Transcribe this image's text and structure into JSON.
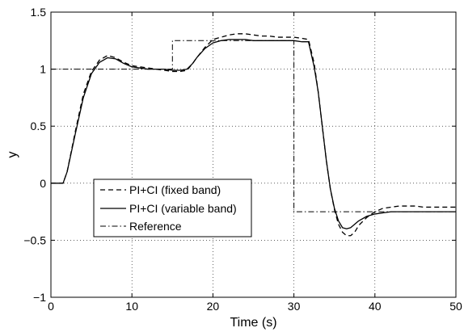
{
  "chart_data": {
    "type": "line",
    "title": "",
    "xlabel": "Time (s)",
    "ylabel": "y",
    "xlim": [
      0,
      50
    ],
    "ylim": [
      -1,
      1.5
    ],
    "xticks": [
      0,
      10,
      20,
      30,
      40,
      50
    ],
    "xtick_labels": [
      "0",
      "10",
      "20",
      "30",
      "40",
      "50"
    ],
    "yticks": [
      -1,
      -0.5,
      0,
      0.5,
      1,
      1.5
    ],
    "ytick_labels": [
      "−1",
      "−0.5",
      "0",
      "0.5",
      "1",
      "1.5"
    ],
    "grid": true,
    "legend_position": "lower-left",
    "series": [
      {
        "name": "PI+CI (fixed band)",
        "color": "#000000",
        "style": "dashed",
        "x": [
          0,
          1.5,
          2,
          3,
          4,
          5,
          6,
          7,
          8,
          9,
          10,
          11,
          12,
          13,
          14,
          15,
          16,
          16.8,
          17.5,
          18,
          19,
          20,
          21,
          22,
          23,
          24,
          25,
          26,
          27,
          28,
          29,
          30,
          31,
          31.8,
          32.5,
          33,
          33.5,
          34,
          34.5,
          35,
          35.5,
          36,
          36.5,
          37,
          37.5,
          38,
          39,
          40,
          41,
          42,
          43,
          44,
          45,
          46,
          47,
          48,
          49,
          50
        ],
        "y": [
          0,
          0,
          0.1,
          0.45,
          0.78,
          0.98,
          1.08,
          1.12,
          1.1,
          1.06,
          1.03,
          1.02,
          1.01,
          1.0,
          0.99,
          0.98,
          0.98,
          0.99,
          1.05,
          1.1,
          1.19,
          1.26,
          1.28,
          1.3,
          1.31,
          1.31,
          1.3,
          1.29,
          1.29,
          1.28,
          1.28,
          1.28,
          1.27,
          1.26,
          1.05,
          0.8,
          0.5,
          0.2,
          -0.05,
          -0.23,
          -0.36,
          -0.43,
          -0.46,
          -0.46,
          -0.43,
          -0.37,
          -0.3,
          -0.25,
          -0.22,
          -0.21,
          -0.2,
          -0.2,
          -0.2,
          -0.21,
          -0.21,
          -0.21,
          -0.21,
          -0.21
        ]
      },
      {
        "name": "PI+CI (variable band)",
        "color": "#000000",
        "style": "solid",
        "x": [
          0,
          1.5,
          2,
          3,
          4,
          5,
          6,
          7,
          8,
          9,
          10,
          11,
          12,
          13,
          14,
          15,
          16,
          16.8,
          17.5,
          18,
          19,
          20,
          21,
          22,
          23,
          24,
          25,
          26,
          27,
          28,
          29,
          30,
          31,
          31.8,
          32.5,
          33,
          33.5,
          34,
          34.5,
          35,
          35.5,
          36,
          36.5,
          37,
          37.5,
          38,
          39,
          40,
          41,
          42,
          43,
          44,
          45,
          46,
          47,
          48,
          49,
          50
        ],
        "y": [
          0,
          0,
          0.1,
          0.43,
          0.75,
          0.96,
          1.06,
          1.1,
          1.09,
          1.05,
          1.02,
          1.01,
          1.0,
          1.0,
          1.0,
          0.99,
          0.99,
          1.0,
          1.05,
          1.1,
          1.18,
          1.23,
          1.25,
          1.26,
          1.26,
          1.26,
          1.25,
          1.25,
          1.25,
          1.25,
          1.25,
          1.25,
          1.24,
          1.24,
          1.02,
          0.8,
          0.5,
          0.2,
          -0.05,
          -0.22,
          -0.33,
          -0.39,
          -0.4,
          -0.39,
          -0.36,
          -0.33,
          -0.29,
          -0.27,
          -0.26,
          -0.25,
          -0.25,
          -0.25,
          -0.25,
          -0.25,
          -0.25,
          -0.25,
          -0.25,
          -0.25
        ]
      },
      {
        "name": "Reference",
        "color": "#000000",
        "style": "dashdot",
        "x": [
          0,
          15,
          15,
          30,
          30,
          50
        ],
        "y": [
          1,
          1,
          1.25,
          1.25,
          -0.25,
          -0.25
        ]
      }
    ]
  }
}
